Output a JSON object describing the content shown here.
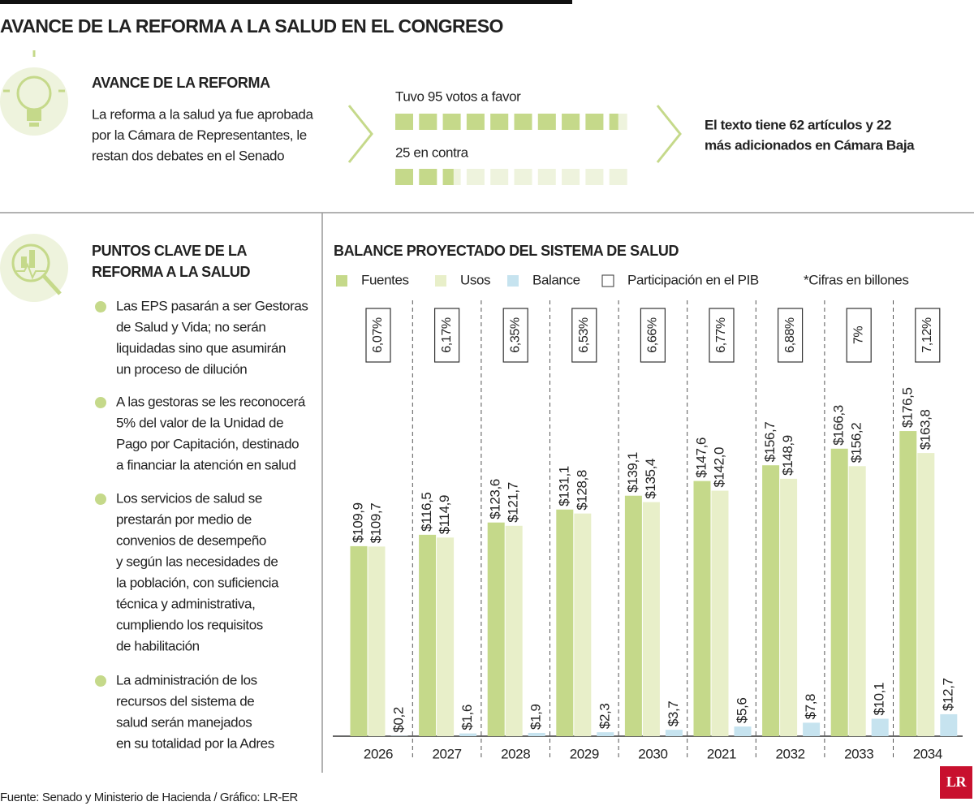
{
  "header": {
    "title": "AVANCE DE LA REFORMA A LA SALUD EN EL CONGRESO"
  },
  "progress": {
    "title": "AVANCE DE LA REFORMA",
    "text": [
      "La reforma a la salud ya fue aprobada",
      "por la Cámara de Representantes, le",
      "restan dos debates en el Senado"
    ],
    "votes_for": "Tuvo 95 votos a favor",
    "votes_against": "25 en contra",
    "articles": [
      "El texto tiene 62 artículos y 22",
      "más adicionados en Cámara Baja"
    ]
  },
  "key_points": {
    "title": [
      "PUNTOS CLAVE DE LA",
      "REFORMA A LA SALUD"
    ],
    "items": [
      [
        "Las EPS pasarán a ser Gestoras",
        "de Salud y Vida; no serán",
        "liquidadas sino que asumirán",
        "un proceso de dilución"
      ],
      [
        "A las gestoras se les reconocerá",
        "5% del valor de la Unidad de",
        "Pago por Capitación, destinado",
        "a financiar la atención en salud"
      ],
      [
        "Los servicios de salud se",
        "prestarán por medio de",
        "convenios de desempeño",
        "y según las necesidades de",
        "la población, con suficiencia",
        "técnica y administrativa,",
        "cumpliendo los requisitos",
        "de habilitación"
      ],
      [
        "La administración de los",
        "recursos del sistema de",
        "salud serán manejados",
        "en su totalidad por la Adres"
      ]
    ]
  },
  "chart_data": {
    "type": "bar",
    "title": "BALANCE PROYECTADO DEL SISTEMA DE SALUD",
    "note": "*Cifras en billones",
    "categories": [
      "2026",
      "2027",
      "2028",
      "2029",
      "2030",
      "2021",
      "2032",
      "2033",
      "2034"
    ],
    "series": [
      {
        "name": "Fuentes",
        "color": "#c5d98a",
        "values": [
          109.9,
          116.5,
          123.6,
          131.1,
          139.1,
          147.6,
          156.7,
          166.3,
          176.5
        ],
        "value_labels": [
          "$109,9",
          "$116,5",
          "$123,6",
          "$131,1",
          "$139,1",
          "$147,6",
          "$156,7",
          "$166,3",
          "$176,5"
        ]
      },
      {
        "name": "Usos",
        "color": "#e8efc9",
        "values": [
          109.7,
          114.9,
          121.7,
          128.8,
          135.4,
          142.0,
          148.9,
          156.2,
          163.8
        ],
        "value_labels": [
          "$109,7",
          "$114,9",
          "$121,7",
          "$128,8",
          "$135,4",
          "$142,0",
          "$148,9",
          "$156,2",
          "$163,8"
        ]
      },
      {
        "name": "Balance",
        "color": "#c6e3ef",
        "values": [
          0.2,
          1.6,
          1.9,
          2.3,
          3.7,
          5.6,
          7.8,
          10.1,
          12.7
        ],
        "value_labels": [
          "$0,2",
          "$1,6",
          "$1,9",
          "$2,3",
          "$3,7",
          "$5,6",
          "$7,8",
          "$10,1",
          "$12,7"
        ]
      },
      {
        "name": "Participación en el PIB",
        "color": "#ffffff",
        "values": [
          6.07,
          6.17,
          6.35,
          6.53,
          6.66,
          6.77,
          6.88,
          7,
          7.12
        ],
        "value_labels": [
          "6,07%",
          "6,17%",
          "6,35%",
          "6,53%",
          "6,66%",
          "6,77%",
          "6,88%",
          "7%",
          "7,12%"
        ]
      }
    ]
  },
  "source": "Fuente: Senado y Ministerio de Hacienda / Gráfico: LR-ER",
  "logo": "LR"
}
